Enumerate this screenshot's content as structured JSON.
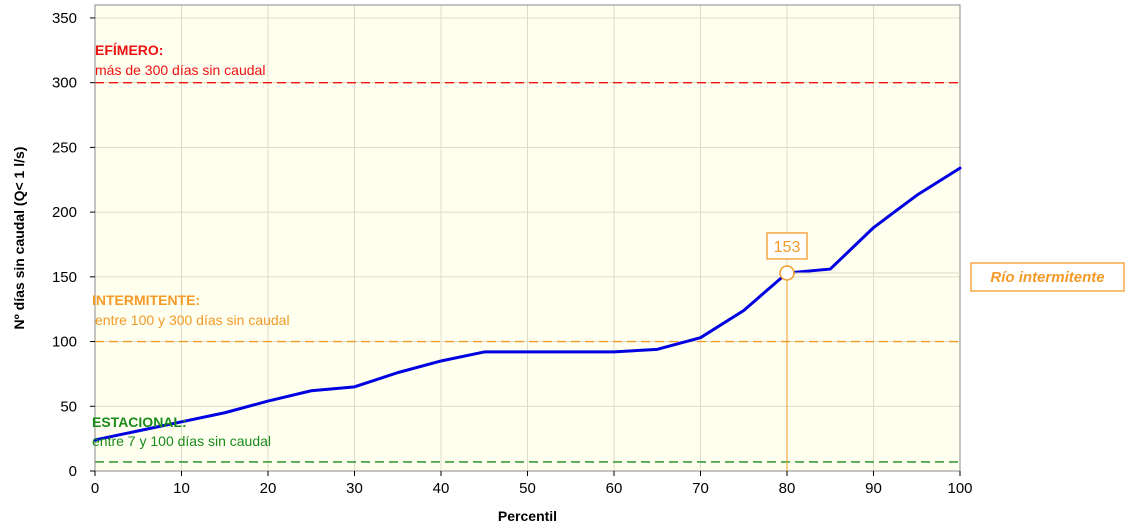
{
  "chart_data": {
    "type": "line",
    "xlabel": "Percentil",
    "ylabel": "Nº días sin caudal (Q< 1 l/s)",
    "xlim": [
      0,
      100
    ],
    "ylim": [
      0,
      360
    ],
    "x_ticks": [
      0,
      10,
      20,
      30,
      40,
      50,
      60,
      70,
      80,
      90,
      100
    ],
    "y_ticks": [
      0,
      50,
      100,
      150,
      200,
      250,
      300,
      350
    ],
    "grid": true,
    "series": [
      {
        "color": "#0000e0",
        "x": [
          0,
          5,
          10,
          15,
          20,
          25,
          30,
          35,
          40,
          45,
          50,
          55,
          60,
          65,
          70,
          75,
          80,
          85,
          90,
          95,
          100
        ],
        "y": [
          24,
          31,
          38,
          45,
          54,
          62,
          65,
          76,
          85,
          92,
          92,
          92,
          92,
          94,
          103,
          124,
          153,
          156,
          188,
          213,
          234
        ]
      }
    ],
    "thresholds": [
      {
        "key": "efimero",
        "value": 300,
        "color": "#ee1111",
        "title": "EFÍMERO:",
        "description": "más de 300 días sin caudal"
      },
      {
        "key": "intermitente",
        "value": 100,
        "color": "#f39a28",
        "title": "INTERMITENTE:",
        "description": "entre 100 y 300 días sin caudal"
      },
      {
        "key": "estacional",
        "value": 7,
        "color": "#1a8a1a",
        "title": "ESTACIONAL:",
        "description": "entre 7 y 100 días sin caudal"
      }
    ],
    "highlight": {
      "x": 80,
      "y": 153,
      "label": "153",
      "color": "#f39a28"
    },
    "side_label": {
      "text": "Río intermitente",
      "color": "#f39a28"
    },
    "plot_background": "#fffff0",
    "grid_color": "#dcdcc8"
  }
}
